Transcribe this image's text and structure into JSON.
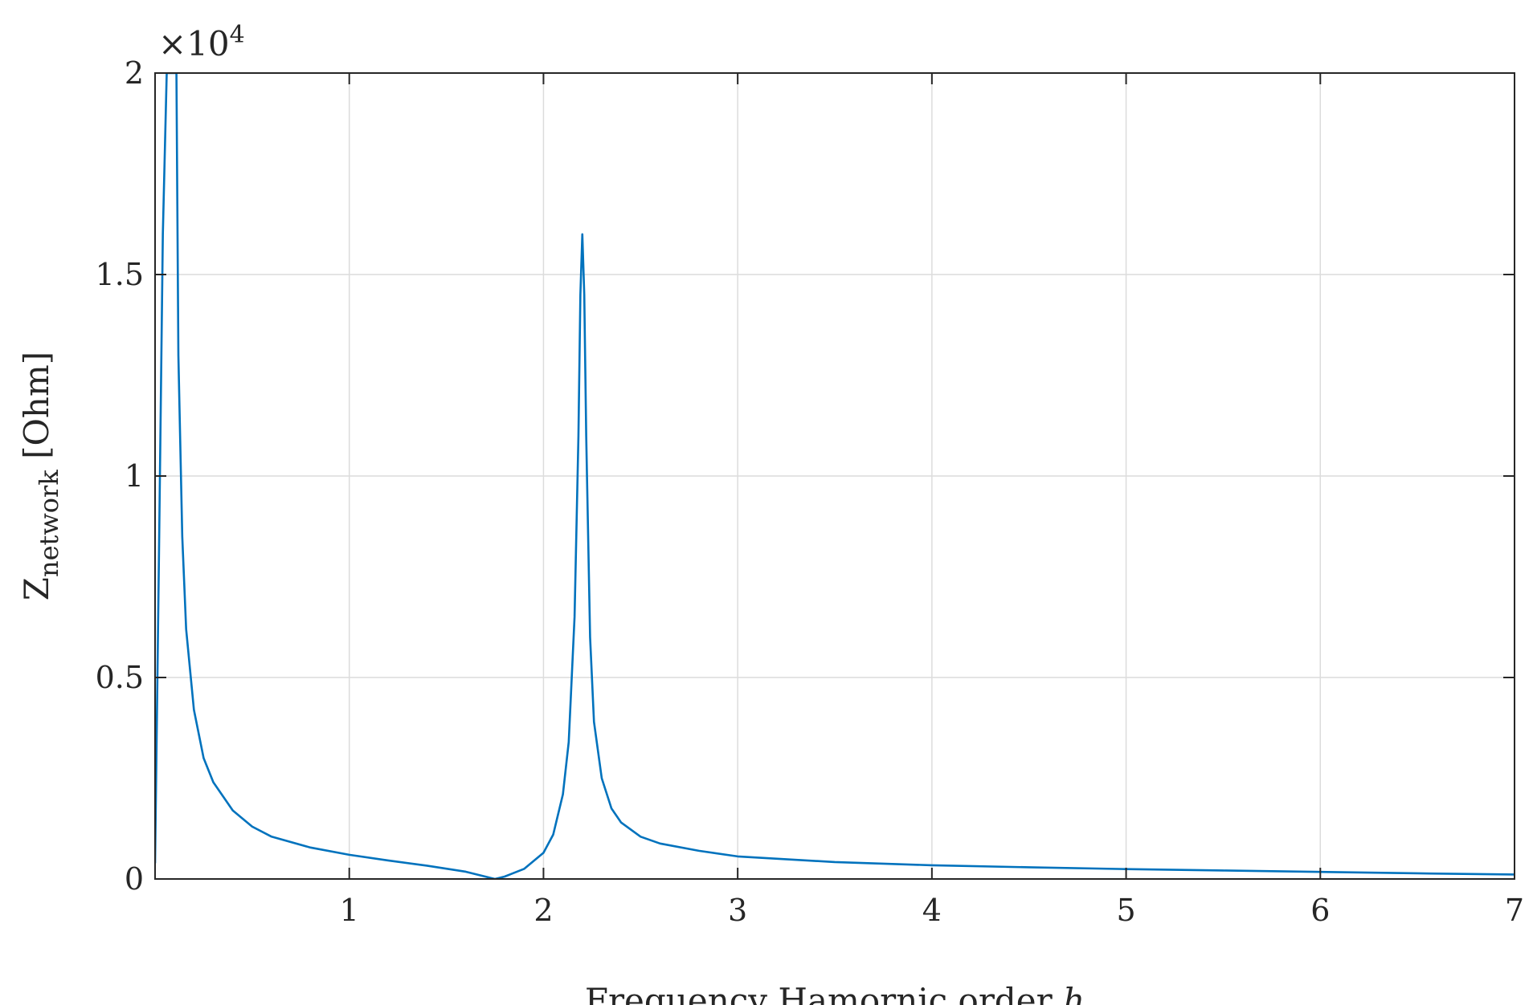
{
  "chart_data": {
    "type": "line",
    "xlabel_text": "Frequency Hamornic order ",
    "xlabel_var": "h",
    "ylabel_main": "Z",
    "ylabel_sub": "network",
    "ylabel_unit": " [Ohm]",
    "y_multiplier_base": "×10",
    "y_multiplier_exp": "4",
    "xlim": [
      0,
      7
    ],
    "ylim": [
      0,
      20000
    ],
    "x_ticks": [
      1,
      2,
      3,
      4,
      5,
      6,
      7
    ],
    "x_tick_labels": [
      "1",
      "2",
      "3",
      "4",
      "5",
      "6",
      "7"
    ],
    "y_ticks": [
      0,
      5000,
      10000,
      15000,
      20000
    ],
    "y_tick_labels": [
      "0",
      "0.5",
      "1",
      "1.5",
      "2"
    ],
    "grid": true,
    "series": [
      {
        "color": "#0072BD",
        "x": [
          0,
          0.02,
          0.04,
          0.06,
          0.07,
          0.08,
          0.09,
          0.1,
          0.11,
          0.12,
          0.14,
          0.16,
          0.2,
          0.25,
          0.3,
          0.4,
          0.5,
          0.6,
          0.8,
          1.0,
          1.2,
          1.4,
          1.6,
          1.7,
          1.75,
          1.8,
          1.9,
          2.0,
          2.05,
          2.1,
          2.13,
          2.16,
          2.18,
          2.19,
          2.2,
          2.21,
          2.22,
          2.24,
          2.26,
          2.3,
          2.35,
          2.4,
          2.5,
          2.6,
          2.8,
          3.0,
          3.5,
          4.0,
          4.5,
          5.0,
          5.5,
          6.0,
          6.5,
          7.0
        ],
        "y": [
          400,
          8000,
          16000,
          20000,
          20000,
          20000,
          20000,
          20000,
          20000,
          13000,
          8500,
          6200,
          4200,
          3000,
          2400,
          1700,
          1300,
          1050,
          780,
          600,
          460,
          330,
          180,
          60,
          0,
          60,
          250,
          650,
          1100,
          2100,
          3400,
          6500,
          11000,
          14500,
          16000,
          14500,
          11000,
          6000,
          3900,
          2500,
          1750,
          1400,
          1050,
          880,
          700,
          560,
          420,
          340,
          290,
          245,
          210,
          175,
          140,
          110
        ]
      }
    ]
  }
}
